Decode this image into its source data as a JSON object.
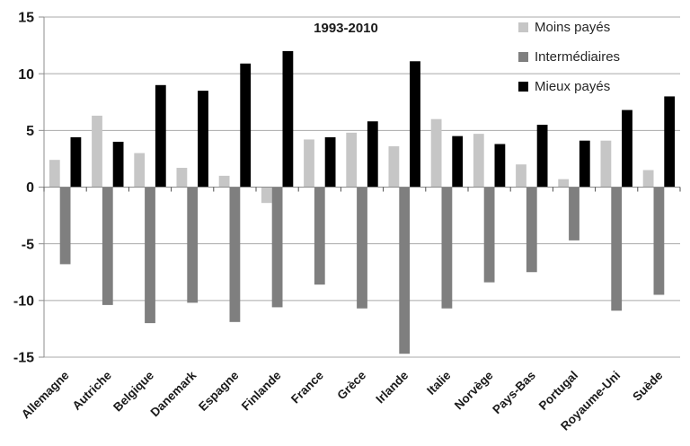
{
  "chart_data": {
    "type": "bar",
    "title": "1993-2010",
    "categories": [
      "Allemagne",
      "Autriche",
      "Belgique",
      "Danemark",
      "Espagne",
      "Finlande",
      "France",
      "Grèce",
      "Irlande",
      "Italie",
      "Norvège",
      "Pays-Bas",
      "Portugal",
      "Royaume-Uni",
      "Suède"
    ],
    "series": [
      {
        "name": "Moins payés",
        "color": "#c6c6c6",
        "values": [
          2.4,
          6.3,
          3.0,
          1.7,
          1.0,
          -1.4,
          4.2,
          4.8,
          3.6,
          6.0,
          4.7,
          2.0,
          0.7,
          4.1,
          1.5
        ]
      },
      {
        "name": "Intermédiaires",
        "color": "#7f7f7f",
        "values": [
          -6.8,
          -10.4,
          -12.0,
          -10.2,
          -11.9,
          -10.6,
          -8.6,
          -10.7,
          -14.7,
          -10.7,
          -8.4,
          -7.5,
          -4.7,
          -10.9,
          -9.5
        ]
      },
      {
        "name": "Mieux payés",
        "color": "#000000",
        "values": [
          4.4,
          4.0,
          9.0,
          8.5,
          10.9,
          12.0,
          4.4,
          5.8,
          11.1,
          4.5,
          3.8,
          5.5,
          4.1,
          6.8,
          8.0
        ]
      }
    ],
    "ylim": [
      -15,
      15
    ],
    "yticks": [
      15,
      10,
      5,
      0,
      -5,
      -10,
      -15
    ],
    "xlabel": "",
    "ylabel": "",
    "grid": true,
    "legend_position": "top-right"
  },
  "colors": {
    "background": "#ffffff",
    "gridline": "#a9a9a9",
    "y_axis": "#8c8c8c",
    "x_axis": "#8c8c8c",
    "axis_tick": "#4d4d4d",
    "text": "#1a1a1a",
    "legend_text": "#262626"
  }
}
